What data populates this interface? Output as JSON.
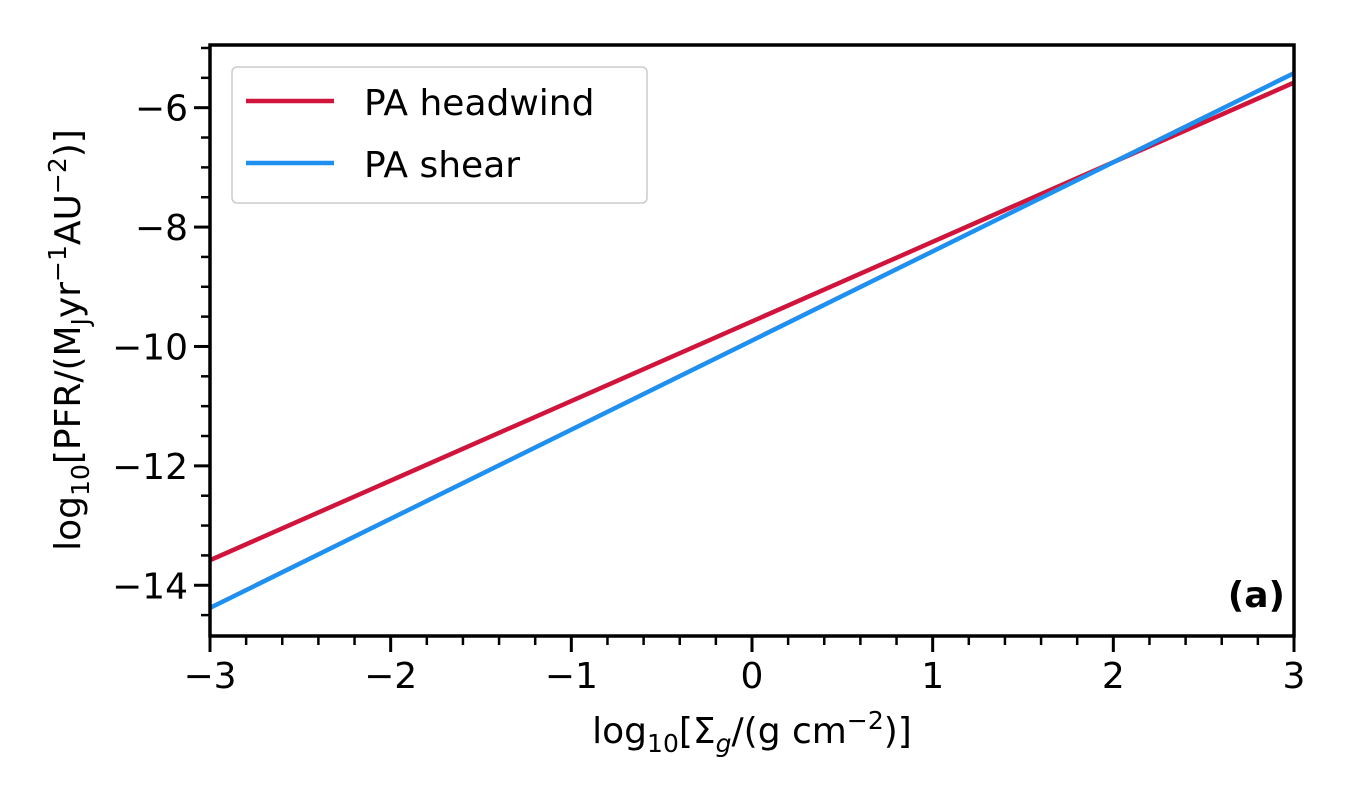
{
  "chart_data": {
    "type": "line",
    "panel_label": "(a)",
    "xlabel": {
      "pre": "log",
      "sub1": "10",
      "mid": "[Σ",
      "sub2": "g",
      "post": "/(g cm",
      "sup": "−2",
      "end": ")]"
    },
    "ylabel": {
      "pre": "log",
      "sub1": "10",
      "mid": "[PFR/(M",
      "sub2": "J",
      "mid2": "yr",
      "sup1": "−1",
      "mid3": "AU",
      "sup2": "−2",
      "end": ")]"
    },
    "xlim": [
      -3,
      3
    ],
    "ylim": [
      -14.85,
      -4.95
    ],
    "xticks": [
      {
        "value": -3,
        "label": "−3"
      },
      {
        "value": -2,
        "label": "−2"
      },
      {
        "value": -1,
        "label": "−1"
      },
      {
        "value": 0,
        "label": "0"
      },
      {
        "value": 1,
        "label": "1"
      },
      {
        "value": 2,
        "label": "2"
      },
      {
        "value": 3,
        "label": "3"
      }
    ],
    "yticks": [
      {
        "value": -14,
        "label": "−14"
      },
      {
        "value": -12,
        "label": "−12"
      },
      {
        "value": -10,
        "label": "−10"
      },
      {
        "value": -8,
        "label": "−8"
      },
      {
        "value": -6,
        "label": "−6"
      }
    ],
    "x_minor_step": 0.2,
    "y_minor_step": 0.5,
    "grid": false,
    "legend_position": "top-left",
    "series": [
      {
        "name": "PA headwind",
        "color": "#d0143c",
        "x": [
          -3,
          3
        ],
        "y": [
          -13.58,
          -5.58
        ]
      },
      {
        "name": "PA shear",
        "color": "#2090f0",
        "x": [
          -3,
          3
        ],
        "y": [
          -14.38,
          -5.42
        ]
      }
    ]
  }
}
